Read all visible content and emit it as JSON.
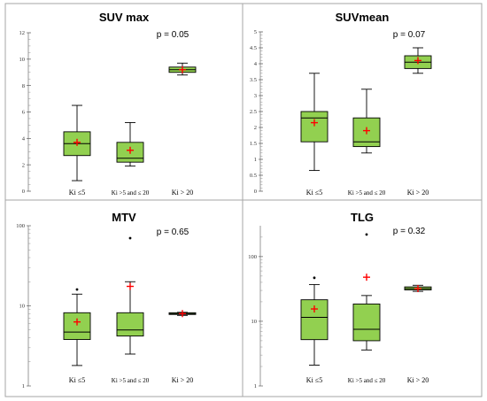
{
  "colors": {
    "box_fill": "#92d050",
    "box_stroke": "#000000",
    "mean_marker": "#ff0000",
    "frame": "#a6a6a6"
  },
  "chart_data": [
    {
      "type": "box",
      "title": "SUV max",
      "annotation": "p = 0.05",
      "yscale": "linear",
      "ylim": [
        0,
        12
      ],
      "yticks": [
        0,
        2,
        4,
        6,
        8,
        10,
        12
      ],
      "categories": [
        "Ki ≤5",
        "Ki >5 and ≤ 20",
        "Ki > 20"
      ],
      "boxes": [
        {
          "min": 0.8,
          "q1": 2.7,
          "median": 3.6,
          "q3": 4.5,
          "max": 6.5,
          "mean": 3.7,
          "outliers": []
        },
        {
          "min": 1.9,
          "q1": 2.2,
          "median": 2.5,
          "q3": 3.7,
          "max": 5.2,
          "mean": 3.1,
          "outliers": []
        },
        {
          "min": 8.8,
          "q1": 9.0,
          "median": 9.2,
          "q3": 9.4,
          "max": 9.7,
          "mean": 9.2,
          "outliers": []
        }
      ]
    },
    {
      "type": "box",
      "title": "SUVmean",
      "annotation": "p = 0.07",
      "yscale": "linear",
      "ylim": [
        0,
        5
      ],
      "yticks": [
        0,
        0.5,
        1,
        1.5,
        2,
        2.5,
        3,
        3.5,
        4,
        4.5,
        5
      ],
      "categories": [
        "Ki ≤5",
        "Ki >5 and ≤ 20",
        "Ki > 20"
      ],
      "boxes": [
        {
          "min": 0.65,
          "q1": 1.55,
          "median": 2.3,
          "q3": 2.5,
          "max": 3.7,
          "mean": 2.15,
          "outliers": []
        },
        {
          "min": 1.2,
          "q1": 1.4,
          "median": 1.55,
          "q3": 2.3,
          "max": 3.2,
          "mean": 1.9,
          "outliers": []
        },
        {
          "min": 3.7,
          "q1": 3.85,
          "median": 4.05,
          "q3": 4.25,
          "max": 4.5,
          "mean": 4.1,
          "outliers": []
        }
      ]
    },
    {
      "type": "box",
      "title": "MTV",
      "annotation": "p = 0.65",
      "yscale": "log",
      "ylim": [
        1,
        100
      ],
      "yticks": [
        1,
        10,
        100
      ],
      "categories": [
        "Ki ≤5",
        "Ki >5 and ≤ 20",
        "Ki > 20"
      ],
      "boxes": [
        {
          "min": 1.8,
          "q1": 3.8,
          "median": 4.7,
          "q3": 8.2,
          "max": 14,
          "mean": 6.3,
          "outliers": [
            16
          ]
        },
        {
          "min": 2.5,
          "q1": 4.2,
          "median": 5.0,
          "q3": 8.2,
          "max": 20,
          "mean": 17.5,
          "outliers": [
            70
          ]
        },
        {
          "min": 7.6,
          "q1": 7.8,
          "median": 8.0,
          "q3": 8.2,
          "max": 8.3,
          "mean": 8.0,
          "outliers": []
        }
      ]
    },
    {
      "type": "box",
      "title": "TLG",
      "annotation": "p = 0.32",
      "yscale": "log",
      "ylim": [
        1,
        300
      ],
      "yticks": [
        1,
        10,
        100
      ],
      "categories": [
        "Ki ≤5",
        "Ki >5 and ≤ 20",
        "Ki > 20"
      ],
      "boxes": [
        {
          "min": 2.1,
          "q1": 5.2,
          "median": 11.5,
          "q3": 21.5,
          "max": 37,
          "mean": 15.5,
          "outliers": [
            47
          ]
        },
        {
          "min": 3.6,
          "q1": 5.0,
          "median": 7.5,
          "q3": 18.5,
          "max": 25,
          "mean": 48,
          "outliers": [
            220
          ]
        },
        {
          "min": 29,
          "q1": 30.5,
          "median": 32,
          "q3": 34,
          "max": 36,
          "mean": 32,
          "outliers": []
        }
      ]
    }
  ]
}
